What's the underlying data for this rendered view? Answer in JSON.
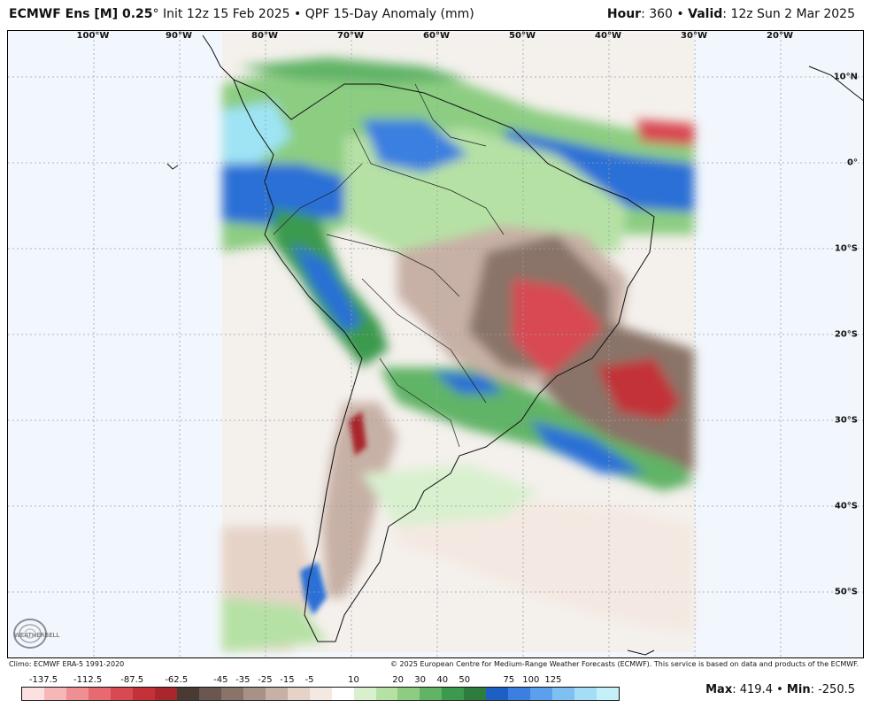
{
  "header": {
    "model": "ECMWF Ens [M] 0.25",
    "degree": "°",
    "init": "Init 12z 15 Feb 2025",
    "bullet": "•",
    "product": "QPF 15-Day Anomaly (mm)",
    "hour_label": "Hour",
    "hour_value": ": 360",
    "valid_label": "Valid",
    "valid_value": ": 12z Sun 2 Mar 2025"
  },
  "map": {
    "longitude_labels": [
      "100°W",
      "90°W",
      "80°W",
      "70°W",
      "60°W",
      "50°W",
      "40°W",
      "30°W",
      "20°W"
    ],
    "latitude_labels": [
      "10°N",
      "0°",
      "10°S",
      "20°S",
      "30°S",
      "40°S",
      "50°S"
    ],
    "colors": {
      "ocean": "#f2f7fd",
      "wet_light": "#bfe5b0",
      "wet_green": "#4faa5c",
      "wet_blue": "#2a6fd6",
      "wet_cyan": "#9fe4f5",
      "dry_tan": "#e8c9b6",
      "dry_brown": "#8a7064",
      "dry_red": "#c8383f"
    }
  },
  "logo": {
    "text": "WEATHERBELL"
  },
  "footer": {
    "climo": "Climo: ECMWF ERA-5 1991-2020",
    "copyright": "© 2025 European Centre for Medium-Range Weather Forecasts (ECMWF). This service is based on data and products of the ECMWF."
  },
  "legend": {
    "tick_labels": [
      "-137.5",
      "-112.5",
      "-87.5",
      "-62.5",
      "-45",
      "-35",
      "-25",
      "-15",
      "-5",
      "10",
      "20",
      "30",
      "40",
      "50",
      "75",
      "100",
      "125"
    ],
    "colors": [
      "#fde0e0",
      "#f7b7b9",
      "#ef8f93",
      "#e66a70",
      "#d84a52",
      "#c23238",
      "#a8262c",
      "#4a3a34",
      "#6b574f",
      "#8a7368",
      "#a89187",
      "#c7b0a5",
      "#e6d3c8",
      "#f4e9e2",
      "#ffffff",
      "#d9f0cf",
      "#b6e1a5",
      "#8ccd82",
      "#61b466",
      "#3b9a4e",
      "#2d7d3e",
      "#1d5fc4",
      "#3b7fe0",
      "#5aa0ec",
      "#7fc0f2",
      "#a5dcf6",
      "#c4f0f9"
    ]
  },
  "stats": {
    "max_label": "Max",
    "max_value": ": 419.4",
    "sep": "•",
    "min_label": "Min",
    "min_value": ": -250.5"
  }
}
